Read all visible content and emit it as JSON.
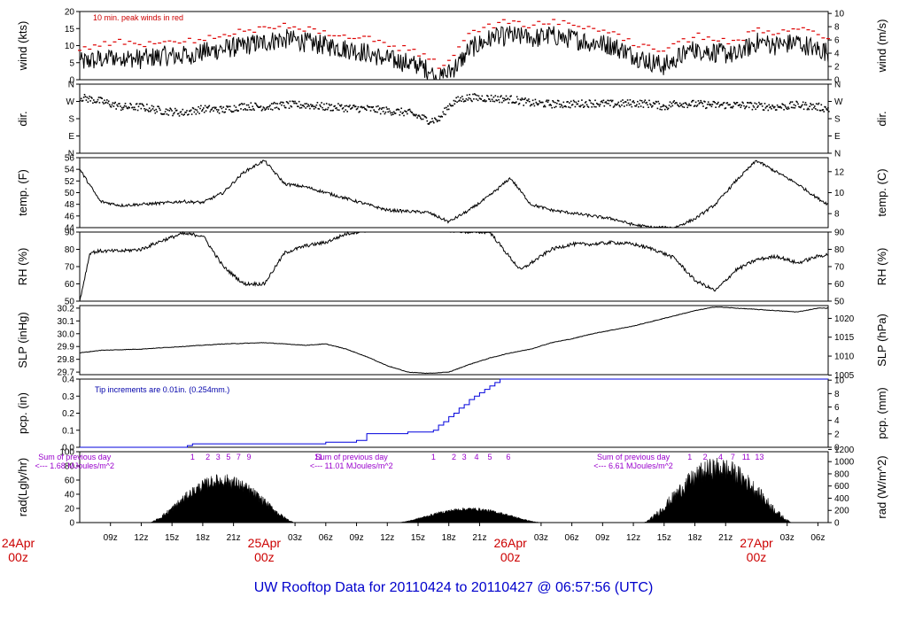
{
  "title": "UW Rooftop Data for 20110424  to  20110427 @ 06:57:56  (UTC)",
  "colors": {
    "wind": "#000000",
    "peak": "#dd0000",
    "precip": "#0000dd",
    "day": "#cc0000",
    "sums": "#9900cc",
    "title": "#0000cc"
  },
  "chart_data": {
    "type": "line",
    "x_hours": {
      "start": 6,
      "end": 79
    },
    "x_ticks": [
      "09z",
      "12z",
      "15z",
      "18z",
      "21z",
      "03z",
      "06z",
      "09z",
      "12z",
      "15z",
      "18z",
      "21z",
      "03z",
      "06z",
      "09z",
      "12z",
      "15z",
      "18z",
      "21z",
      "03z",
      "06z"
    ],
    "x_tick_hours": [
      9,
      12,
      15,
      18,
      21,
      27,
      30,
      33,
      36,
      39,
      42,
      45,
      51,
      54,
      57,
      60,
      63,
      66,
      69,
      75,
      78
    ],
    "day_labels": [
      {
        "hour": 0,
        "line1": "24Apr",
        "line2": "00z"
      },
      {
        "hour": 24,
        "line1": "25Apr",
        "line2": "00z"
      },
      {
        "hour": 48,
        "line1": "26Apr",
        "line2": "00z"
      },
      {
        "hour": 72,
        "line1": "27Apr",
        "line2": "00z"
      }
    ],
    "panels": [
      {
        "id": "wind",
        "ylabel_left": "wind (kts)",
        "ylabel_right": "wind (m/s)",
        "ylim": [
          0,
          20
        ],
        "left_ticks": [
          "0",
          "5",
          "10",
          "15",
          "20"
        ],
        "left_tick_vals": [
          0,
          5,
          10,
          15,
          20
        ],
        "right_ticks": [
          "0",
          "2",
          "4",
          "6",
          "8",
          "10"
        ],
        "right_tick_vals": [
          0,
          3.89,
          7.78,
          11.66,
          15.55,
          19.44
        ],
        "annotation": "10 min. peak winds in red",
        "knots_x": [
          6,
          8,
          10,
          12,
          14,
          16,
          18,
          20,
          22,
          24,
          26,
          28,
          30,
          32,
          34,
          36,
          38,
          40,
          41,
          42,
          43,
          44,
          46,
          48,
          50,
          52,
          54,
          56,
          58,
          60,
          62,
          63,
          64,
          66,
          68,
          70,
          72,
          74,
          76,
          78,
          79
        ],
        "knots_y": [
          5,
          6,
          7,
          6,
          7,
          7,
          8,
          9,
          10,
          11,
          12,
          11,
          10,
          9,
          8,
          6,
          5,
          3,
          0,
          2,
          5,
          9,
          12,
          13,
          12,
          13,
          12,
          11,
          10,
          7,
          5,
          4,
          6,
          9,
          8,
          7,
          11,
          10,
          11,
          9,
          8
        ],
        "noise": 3.0,
        "peak_offset": 3.0
      },
      {
        "id": "dir",
        "ylabel_left": "dir.",
        "ylabel_right": "dir.",
        "ylim": [
          0,
          360
        ],
        "left_ticks": [
          "N",
          "E",
          "S",
          "W",
          "N"
        ],
        "left_tick_vals": [
          0,
          90,
          180,
          270,
          360
        ],
        "right_ticks": [
          "N",
          "E",
          "S",
          "W",
          "N"
        ],
        "right_tick_vals": [
          0,
          90,
          180,
          270,
          360
        ],
        "knots_x": [
          6,
          8,
          10,
          12,
          14,
          16,
          18,
          20,
          22,
          24,
          26,
          28,
          30,
          32,
          34,
          36,
          38,
          40,
          41,
          42,
          43,
          44,
          46,
          48,
          50,
          52,
          54,
          56,
          58,
          60,
          62,
          63,
          64,
          66,
          68,
          70,
          72,
          74,
          76,
          78,
          79
        ],
        "knots_y": [
          290,
          270,
          240,
          240,
          220,
          210,
          230,
          225,
          245,
          240,
          250,
          250,
          240,
          235,
          230,
          220,
          210,
          170,
          175,
          250,
          280,
          290,
          285,
          280,
          260,
          255,
          255,
          260,
          255,
          260,
          255,
          240,
          260,
          255,
          250,
          250,
          245,
          240,
          250,
          240,
          230
        ],
        "noise": 20
      },
      {
        "id": "temp",
        "ylabel_left": "temp. (F)",
        "ylabel_right": "temp. (C)",
        "ylim": [
          44,
          56
        ],
        "left_ticks": [
          "44",
          "46",
          "48",
          "50",
          "52",
          "54",
          "56"
        ],
        "left_tick_vals": [
          44,
          46,
          48,
          50,
          52,
          54,
          56
        ],
        "right_ticks": [
          "8",
          "10",
          "12"
        ],
        "right_tick_vals": [
          46.4,
          50,
          53.6
        ],
        "knots_x": [
          6,
          8,
          10,
          12,
          14,
          16,
          18,
          20,
          22,
          24,
          26,
          28,
          30,
          32,
          34,
          36,
          38,
          40,
          42,
          44,
          46,
          48,
          50,
          52,
          54,
          56,
          58,
          60,
          62,
          64,
          66,
          68,
          70,
          72,
          74,
          76,
          78,
          79
        ],
        "knots_y": [
          54,
          48.5,
          47.8,
          48,
          48.2,
          48.5,
          48.3,
          50,
          53.5,
          55.5,
          51.5,
          51,
          50,
          49,
          48,
          47,
          46.8,
          46.6,
          45,
          47,
          49.5,
          52.5,
          48,
          47,
          46.5,
          46,
          45.5,
          44.5,
          44,
          44,
          45.5,
          48,
          52,
          55.5,
          53.5,
          51.5,
          49,
          48
        ],
        "noise": 0.25
      },
      {
        "id": "rh",
        "ylabel_left": "RH (%)",
        "ylabel_right": "RH (%)",
        "ylim": [
          50,
          90
        ],
        "left_ticks": [
          "50",
          "60",
          "70",
          "80",
          "90"
        ],
        "left_tick_vals": [
          50,
          60,
          70,
          80,
          90
        ],
        "right_ticks": [
          "50",
          "60",
          "70",
          "80",
          "90"
        ],
        "right_tick_vals": [
          50,
          60,
          70,
          80,
          90
        ],
        "knots_x": [
          6,
          7,
          8,
          10,
          12,
          14,
          16,
          18,
          20,
          22,
          24,
          26,
          28,
          30,
          32,
          34,
          36,
          38,
          40,
          42,
          44,
          46,
          48,
          49,
          50,
          52,
          54,
          56,
          58,
          60,
          62,
          64,
          66,
          68,
          70,
          72,
          74,
          76,
          78,
          79
        ],
        "knots_y": [
          50,
          78,
          79,
          79,
          80,
          85,
          89,
          88,
          70,
          60,
          60,
          78,
          82,
          84,
          89,
          91,
          92,
          92,
          93,
          91,
          90,
          90,
          75,
          68,
          72,
          80,
          83,
          83,
          84,
          83,
          80,
          75,
          62,
          56,
          68,
          74,
          76,
          72,
          76,
          77
        ],
        "noise": 1.0
      },
      {
        "id": "slp",
        "ylabel_left": "SLP (inHg)",
        "ylabel_right": "SLP (hPa)",
        "ylim": [
          29.68,
          30.22
        ],
        "left_ticks": [
          "29.7",
          "29.8",
          "29.9",
          "30.0",
          "30.1",
          "30.2"
        ],
        "left_tick_vals": [
          29.7,
          29.8,
          29.9,
          30.0,
          30.1,
          30.2
        ],
        "right_ticks": [
          "1005",
          "1010",
          "1015",
          "1020"
        ],
        "right_tick_vals": [
          29.677,
          29.825,
          29.973,
          30.12
        ],
        "knots_x": [
          6,
          8,
          12,
          16,
          20,
          24,
          28,
          30,
          32,
          34,
          36,
          38,
          40,
          42,
          44,
          46,
          48,
          50,
          52,
          54,
          56,
          58,
          60,
          62,
          64,
          66,
          68,
          70,
          72,
          74,
          76,
          78,
          79
        ],
        "knots_y": [
          29.85,
          29.87,
          29.88,
          29.9,
          29.92,
          29.93,
          29.91,
          29.92,
          29.88,
          29.82,
          29.75,
          29.7,
          29.69,
          29.7,
          29.76,
          29.81,
          29.85,
          29.88,
          29.93,
          29.96,
          30.0,
          30.03,
          30.06,
          30.1,
          30.14,
          30.18,
          30.21,
          30.2,
          30.19,
          30.18,
          30.17,
          30.2,
          30.2
        ],
        "noise": 0.002
      },
      {
        "id": "pcp",
        "ylabel_left": "pcp. (in)",
        "ylabel_right": "pcp. (mm)",
        "ylim": [
          0,
          0.4
        ],
        "left_ticks": [
          "0.0",
          "0.1",
          "0.2",
          "0.3",
          "0.4"
        ],
        "left_tick_vals": [
          0,
          0.1,
          0.2,
          0.3,
          0.4
        ],
        "right_ticks": [
          "0",
          "2",
          "4",
          "6",
          "8",
          "10"
        ],
        "right_tick_vals": [
          0,
          0.0787,
          0.1575,
          0.2362,
          0.315,
          0.3937
        ],
        "annotation": "Tip increments are 0.01in. (0.254mm.)",
        "steps_x": [
          6,
          16,
          16.5,
          17,
          30,
          33,
          34,
          38,
          40.5,
          41,
          41.5,
          42,
          42.5,
          43,
          43.5,
          44,
          44.5,
          45,
          45.5,
          46,
          46.5,
          47,
          79
        ],
        "steps_y": [
          0,
          0,
          0.01,
          0.02,
          0.03,
          0.04,
          0.08,
          0.09,
          0.1,
          0.13,
          0.15,
          0.18,
          0.2,
          0.23,
          0.25,
          0.28,
          0.3,
          0.32,
          0.34,
          0.36,
          0.38,
          0.4,
          0.4
        ]
      },
      {
        "id": "rad",
        "ylabel_left": "rad(Lgly/hr)",
        "ylabel_right": "rad (W/m^2)",
        "ylim": [
          0,
          100
        ],
        "left_ticks": [
          "0",
          "20",
          "40",
          "60",
          "80",
          "100"
        ],
        "left_tick_vals": [
          0,
          20,
          40,
          60,
          80,
          100
        ],
        "right_ticks": [
          "0",
          "200",
          "400",
          "600",
          "800",
          "1000",
          "1200"
        ],
        "right_tick_vals": [
          0,
          17.2,
          34.4,
          51.6,
          68.8,
          86,
          103.2
        ],
        "days": [
          {
            "rise": 12.8,
            "set": 27.0,
            "peak": 55,
            "center": 20.5,
            "noise": 20
          },
          {
            "rise": 37.0,
            "set": 51.0,
            "peak": 18,
            "center": 44.0,
            "noise": 5
          },
          {
            "rise": 61.0,
            "set": 75.5,
            "peak": 70,
            "center": 68.0,
            "noise": 32
          }
        ],
        "sums": [
          {
            "hour": 5.5,
            "line1": "Sum of previous day",
            "line2": "<--- 1.68 MJoules/m^2"
          },
          {
            "hour": 32.5,
            "line1": "Sum of previous day",
            "line2": "<--- 11.01 MJoules/m^2"
          },
          {
            "hour": 60,
            "line1": "Sum of previous day",
            "line2": "<--- 6.61 MJoules/m^2"
          }
        ],
        "hour_numbers": [
          {
            "hour": 17,
            "text": "1"
          },
          {
            "hour": 18.5,
            "text": "2"
          },
          {
            "hour": 19.5,
            "text": "3"
          },
          {
            "hour": 20.5,
            "text": "5"
          },
          {
            "hour": 21.5,
            "text": "7"
          },
          {
            "hour": 22.5,
            "text": "9"
          },
          {
            "hour": 29.3,
            "text": "11"
          },
          {
            "hour": 40.5,
            "text": "1"
          },
          {
            "hour": 42.5,
            "text": "2"
          },
          {
            "hour": 43.5,
            "text": "3"
          },
          {
            "hour": 44.7,
            "text": "4"
          },
          {
            "hour": 46,
            "text": "5"
          },
          {
            "hour": 47.8,
            "text": "6"
          },
          {
            "hour": 65.5,
            "text": "1"
          },
          {
            "hour": 67,
            "text": "2"
          },
          {
            "hour": 68.5,
            "text": "4"
          },
          {
            "hour": 69.7,
            "text": "7"
          },
          {
            "hour": 71,
            "text": "11"
          },
          {
            "hour": 72.3,
            "text": "13"
          }
        ]
      }
    ]
  }
}
